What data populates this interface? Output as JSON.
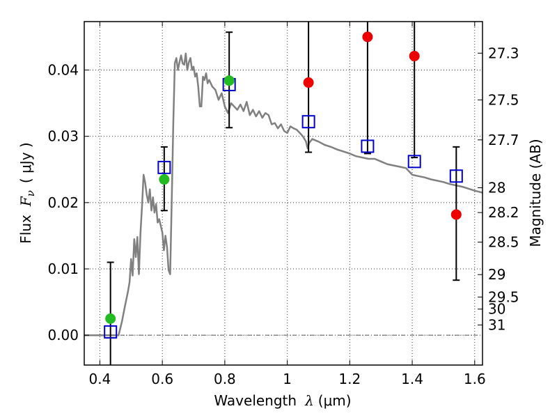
{
  "chart_data": {
    "type": "scatter",
    "xlabel_text": "Wavelength",
    "xlabel_symbol": "λ",
    "xlabel_unit": "(μm)",
    "ylabel_text": "Flux",
    "ylabel_symbol": "F",
    "ylabel_subscript": "ν",
    "ylabel_unit": "( μJy )",
    "y2label": "Magnitude (AB)",
    "xlim": [
      0.35,
      1.625
    ],
    "ylim": [
      -0.0045,
      0.0473
    ],
    "grid": true,
    "x_ticks": [
      {
        "value": 0.4,
        "label": "0.4"
      },
      {
        "value": 0.6,
        "label": "0.6"
      },
      {
        "value": 0.8,
        "label": "0.8"
      },
      {
        "value": 1.0,
        "label": "1"
      },
      {
        "value": 1.2,
        "label": "1.2"
      },
      {
        "value": 1.4,
        "label": "1.4"
      },
      {
        "value": 1.6,
        "label": "1.6"
      }
    ],
    "y_ticks": [
      {
        "value": 0.0,
        "label": "0.00"
      },
      {
        "value": 0.01,
        "label": "0.01"
      },
      {
        "value": 0.02,
        "label": "0.02"
      },
      {
        "value": 0.03,
        "label": "0.03"
      },
      {
        "value": 0.04,
        "label": "0.04"
      }
    ],
    "mag_ticks": [
      {
        "value": 27.3,
        "flux": 0.04254,
        "label": "27.3"
      },
      {
        "value": 27.5,
        "flux": 0.03549,
        "label": "27.5"
      },
      {
        "value": 27.7,
        "flux": 0.02946,
        "label": "27.7"
      },
      {
        "value": 28.0,
        "flux": 0.02224,
        "label": "28"
      },
      {
        "value": 28.2,
        "flux": 0.0185,
        "label": "28.2"
      },
      {
        "value": 28.5,
        "flux": 0.01404,
        "label": "28.5"
      },
      {
        "value": 29.0,
        "flux": 0.00914,
        "label": "29"
      },
      {
        "value": 29.5,
        "flux": 0.00576,
        "label": "29.5"
      },
      {
        "value": 30.0,
        "flux": 0.00394,
        "label": "30"
      },
      {
        "value": 31.0,
        "flux": 0.00154,
        "label": "31"
      }
    ],
    "colors": {
      "spectrum": "#808080",
      "model": "#0000cc",
      "detected": "#22bb22",
      "undetected": "#ee0000",
      "errorbar": "#000000"
    },
    "series": [
      {
        "kind": "line",
        "points": [
          [
            0.35,
            0.0
          ],
          [
            0.45,
            0.0
          ],
          [
            0.46,
            0.0
          ],
          [
            0.47,
            0.0019
          ],
          [
            0.48,
            0.0043
          ],
          [
            0.49,
            0.0066
          ],
          [
            0.495,
            0.008
          ],
          [
            0.5,
            0.0115
          ],
          [
            0.505,
            0.009
          ],
          [
            0.51,
            0.0145
          ],
          [
            0.515,
            0.0118
          ],
          [
            0.52,
            0.0148
          ],
          [
            0.525,
            0.0092
          ],
          [
            0.53,
            0.0155
          ],
          [
            0.535,
            0.0195
          ],
          [
            0.54,
            0.0242
          ],
          [
            0.545,
            0.023
          ],
          [
            0.55,
            0.0212
          ],
          [
            0.555,
            0.02
          ],
          [
            0.56,
            0.022
          ],
          [
            0.565,
            0.0188
          ],
          [
            0.57,
            0.0208
          ],
          [
            0.575,
            0.0185
          ],
          [
            0.58,
            0.0198
          ],
          [
            0.585,
            0.017
          ],
          [
            0.59,
            0.0175
          ],
          [
            0.595,
            0.0165
          ],
          [
            0.6,
            0.0155
          ],
          [
            0.605,
            0.0128
          ],
          [
            0.61,
            0.015
          ],
          [
            0.615,
            0.0133
          ],
          [
            0.62,
            0.0098
          ],
          [
            0.625,
            0.0092
          ],
          [
            0.63,
            0.02
          ],
          [
            0.635,
            0.032
          ],
          [
            0.64,
            0.041
          ],
          [
            0.645,
            0.0418
          ],
          [
            0.65,
            0.04
          ],
          [
            0.655,
            0.0412
          ],
          [
            0.66,
            0.0422
          ],
          [
            0.665,
            0.041
          ],
          [
            0.67,
            0.0408
          ],
          [
            0.675,
            0.0425
          ],
          [
            0.68,
            0.04
          ],
          [
            0.685,
            0.0412
          ],
          [
            0.69,
            0.0418
          ],
          [
            0.695,
            0.04
          ],
          [
            0.7,
            0.0405
          ],
          [
            0.705,
            0.039
          ],
          [
            0.71,
            0.0395
          ],
          [
            0.715,
            0.0375
          ],
          [
            0.72,
            0.0345
          ],
          [
            0.725,
            0.0345
          ],
          [
            0.73,
            0.039
          ],
          [
            0.735,
            0.0385
          ],
          [
            0.74,
            0.0395
          ],
          [
            0.745,
            0.038
          ],
          [
            0.75,
            0.0385
          ],
          [
            0.76,
            0.0375
          ],
          [
            0.77,
            0.037
          ],
          [
            0.78,
            0.0355
          ],
          [
            0.79,
            0.0365
          ],
          [
            0.8,
            0.0345
          ],
          [
            0.81,
            0.0335
          ],
          [
            0.82,
            0.035
          ],
          [
            0.83,
            0.0345
          ],
          [
            0.84,
            0.034
          ],
          [
            0.85,
            0.0348
          ],
          [
            0.86,
            0.0338
          ],
          [
            0.87,
            0.0352
          ],
          [
            0.88,
            0.0332
          ],
          [
            0.89,
            0.034
          ],
          [
            0.9,
            0.033
          ],
          [
            0.91,
            0.0338
          ],
          [
            0.92,
            0.0328
          ],
          [
            0.93,
            0.0335
          ],
          [
            0.94,
            0.0332
          ],
          [
            0.95,
            0.0318
          ],
          [
            0.96,
            0.032
          ],
          [
            0.97,
            0.0312
          ],
          [
            0.98,
            0.0318
          ],
          [
            0.99,
            0.0308
          ],
          [
            1.0,
            0.0305
          ],
          [
            1.01,
            0.0315
          ],
          [
            1.02,
            0.0312
          ],
          [
            1.03,
            0.031
          ],
          [
            1.04,
            0.0305
          ],
          [
            1.05,
            0.03
          ],
          [
            1.06,
            0.0292
          ],
          [
            1.065,
            0.0282
          ],
          [
            1.07,
            0.029
          ],
          [
            1.08,
            0.0296
          ],
          [
            1.1,
            0.0292
          ],
          [
            1.12,
            0.0287
          ],
          [
            1.14,
            0.0284
          ],
          [
            1.16,
            0.028
          ],
          [
            1.18,
            0.0277
          ],
          [
            1.2,
            0.0274
          ],
          [
            1.22,
            0.027
          ],
          [
            1.24,
            0.0268
          ],
          [
            1.26,
            0.0266
          ],
          [
            1.28,
            0.0266
          ],
          [
            1.3,
            0.0262
          ],
          [
            1.32,
            0.0258
          ],
          [
            1.34,
            0.0256
          ],
          [
            1.36,
            0.0254
          ],
          [
            1.38,
            0.0252
          ],
          [
            1.4,
            0.0242
          ],
          [
            1.42,
            0.024
          ],
          [
            1.44,
            0.0238
          ],
          [
            1.46,
            0.0235
          ],
          [
            1.48,
            0.0233
          ],
          [
            1.5,
            0.0231
          ],
          [
            1.52,
            0.0228
          ],
          [
            1.54,
            0.0226
          ],
          [
            1.56,
            0.0224
          ],
          [
            1.58,
            0.0221
          ],
          [
            1.6,
            0.0218
          ],
          [
            1.625,
            0.0215
          ]
        ]
      },
      {
        "kind": "squares",
        "points": [
          [
            0.434,
            0.0005
          ],
          [
            0.606,
            0.0253
          ],
          [
            0.814,
            0.0378
          ],
          [
            1.068,
            0.0322
          ],
          [
            1.257,
            0.0285
          ],
          [
            1.407,
            0.0262
          ],
          [
            1.541,
            0.024
          ]
        ]
      },
      {
        "kind": "detections",
        "points": [
          [
            0.434,
            0.0025
          ],
          [
            0.606,
            0.0235
          ],
          [
            0.814,
            0.0384
          ]
        ]
      },
      {
        "kind": "upper-limits",
        "points": [
          [
            1.068,
            0.0381
          ],
          [
            1.257,
            0.045
          ],
          [
            1.407,
            0.0421
          ],
          [
            1.541,
            0.0182
          ]
        ]
      }
    ],
    "errorbars": [
      {
        "x": 0.434,
        "low": -0.0045,
        "high": 0.011
      },
      {
        "x": 0.606,
        "low": 0.0188,
        "high": 0.0284
      },
      {
        "x": 0.814,
        "low": 0.0313,
        "high": 0.0457
      },
      {
        "x": 1.068,
        "low": 0.0276,
        "high": 0.0473
      },
      {
        "x": 1.257,
        "low": 0.0274,
        "high": 0.0473
      },
      {
        "x": 1.407,
        "low": 0.0268,
        "high": 0.0473
      },
      {
        "x": 1.541,
        "low": 0.0083,
        "high": 0.0284
      }
    ]
  }
}
